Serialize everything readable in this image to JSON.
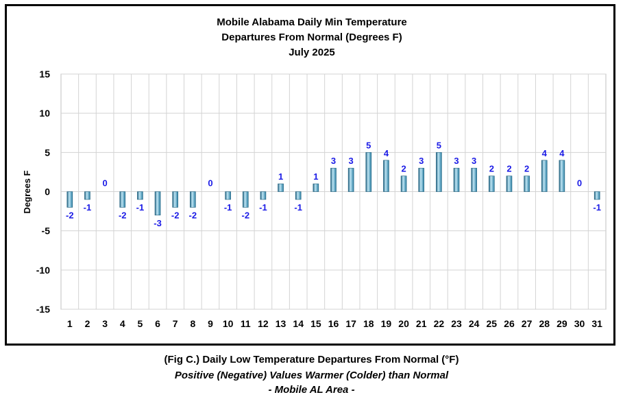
{
  "chart_data": {
    "type": "bar",
    "title_lines": [
      "Mobile Alabama Daily Min Temperature",
      "Departures From Normal (Degrees F)",
      "July 2025"
    ],
    "xlabel": "",
    "ylabel": "Degrees F",
    "ylim": [
      -15,
      15
    ],
    "yticks": [
      15,
      10,
      5,
      0,
      -5,
      -10,
      -15
    ],
    "categories": [
      "1",
      "2",
      "3",
      "4",
      "5",
      "6",
      "7",
      "8",
      "9",
      "10",
      "11",
      "12",
      "13",
      "14",
      "15",
      "16",
      "17",
      "18",
      "19",
      "20",
      "21",
      "22",
      "23",
      "24",
      "25",
      "26",
      "27",
      "28",
      "29",
      "30",
      "31"
    ],
    "values": [
      -2,
      -1,
      0,
      -2,
      -1,
      -3,
      -2,
      -2,
      0,
      -1,
      -2,
      -1,
      1,
      -1,
      1,
      3,
      3,
      5,
      4,
      2,
      3,
      5,
      3,
      3,
      2,
      2,
      2,
      4,
      4,
      0,
      -1
    ],
    "grid": true,
    "legend": "none",
    "colors": {
      "bar": "#3a9cc4",
      "bar_light": "#bfe6f5",
      "bar_dark": "#1f5f7d",
      "label": "#1a1ae6",
      "grid": "#d3d3d3"
    }
  },
  "caption": {
    "line1": "(Fig C.) Daily Low Temperature Departures From Normal (°F)",
    "line2": "Positive (Negative) Values Warmer (Colder) than Normal",
    "line3": "- Mobile AL Area -"
  }
}
